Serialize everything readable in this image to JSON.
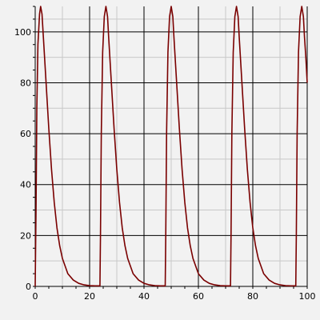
{
  "chart_data": {
    "type": "line",
    "title": "",
    "xlabel": "",
    "ylabel": "",
    "xlim": [
      0,
      100
    ],
    "ylim": [
      0,
      110
    ],
    "grid": true,
    "x_ticks": [
      0,
      20,
      40,
      60,
      80,
      100
    ],
    "y_ticks": [
      0,
      20,
      40,
      60,
      80,
      100
    ],
    "x_tick_labels": [
      "0",
      "20",
      "40",
      "60",
      "80",
      "100"
    ],
    "y_tick_labels": [
      "0",
      "20",
      "40",
      "60",
      "80",
      "100"
    ],
    "colors": {
      "line": "#7a0000",
      "major_grid": "#000000",
      "minor_grid": "#c8c8c8",
      "background": "#f2f2f2"
    },
    "series": [
      {
        "name": "",
        "points": [
          [
            0,
            0
          ],
          [
            0.3,
            30
          ],
          [
            0.6,
            70
          ],
          [
            1.0,
            95
          ],
          [
            1.6,
            107
          ],
          [
            2.0,
            110
          ],
          [
            2.5,
            107
          ],
          [
            3,
            98
          ],
          [
            4,
            80
          ],
          [
            5,
            62
          ],
          [
            6,
            46
          ],
          [
            7,
            33
          ],
          [
            8,
            23
          ],
          [
            9,
            16
          ],
          [
            10,
            11
          ],
          [
            12,
            5
          ],
          [
            14,
            2.5
          ],
          [
            16,
            1.2
          ],
          [
            18,
            0.6
          ],
          [
            20,
            0.3
          ],
          [
            22,
            0.2
          ],
          [
            23.8,
            0.2
          ],
          [
            24.0,
            20
          ],
          [
            24.3,
            60
          ],
          [
            24.8,
            92
          ],
          [
            25.4,
            106
          ],
          [
            26.0,
            110
          ],
          [
            26.6,
            106
          ],
          [
            27,
            98
          ],
          [
            28,
            80
          ],
          [
            29,
            62
          ],
          [
            30,
            46
          ],
          [
            31,
            33
          ],
          [
            32,
            23
          ],
          [
            33,
            16
          ],
          [
            34,
            11
          ],
          [
            36,
            5
          ],
          [
            38,
            2.5
          ],
          [
            40,
            1.2
          ],
          [
            42,
            0.6
          ],
          [
            44,
            0.3
          ],
          [
            46,
            0.2
          ],
          [
            47.8,
            0.2
          ],
          [
            48.0,
            20
          ],
          [
            48.3,
            60
          ],
          [
            48.8,
            92
          ],
          [
            49.4,
            106
          ],
          [
            50.0,
            110
          ],
          [
            50.6,
            106
          ],
          [
            51,
            98
          ],
          [
            52,
            80
          ],
          [
            53,
            62
          ],
          [
            54,
            46
          ],
          [
            55,
            33
          ],
          [
            56,
            23
          ],
          [
            57,
            16
          ],
          [
            58,
            11
          ],
          [
            60,
            5
          ],
          [
            62,
            2.5
          ],
          [
            64,
            1.2
          ],
          [
            66,
            0.6
          ],
          [
            68,
            0.3
          ],
          [
            70,
            0.2
          ],
          [
            71.8,
            0.2
          ],
          [
            72.0,
            20
          ],
          [
            72.3,
            60
          ],
          [
            72.8,
            92
          ],
          [
            73.4,
            106
          ],
          [
            74.0,
            110
          ],
          [
            74.6,
            106
          ],
          [
            75,
            98
          ],
          [
            76,
            80
          ],
          [
            77,
            62
          ],
          [
            78,
            46
          ],
          [
            79,
            33
          ],
          [
            80,
            23
          ],
          [
            81,
            16
          ],
          [
            82,
            11
          ],
          [
            84,
            5
          ],
          [
            86,
            2.5
          ],
          [
            88,
            1.2
          ],
          [
            90,
            0.6
          ],
          [
            92,
            0.3
          ],
          [
            94,
            0.2
          ],
          [
            95.8,
            0.2
          ],
          [
            96.0,
            20
          ],
          [
            96.3,
            60
          ],
          [
            96.8,
            92
          ],
          [
            97.4,
            106
          ],
          [
            98.0,
            110
          ],
          [
            98.6,
            106
          ],
          [
            99,
            98
          ],
          [
            99.5,
            90
          ],
          [
            100,
            80
          ]
        ]
      }
    ]
  }
}
